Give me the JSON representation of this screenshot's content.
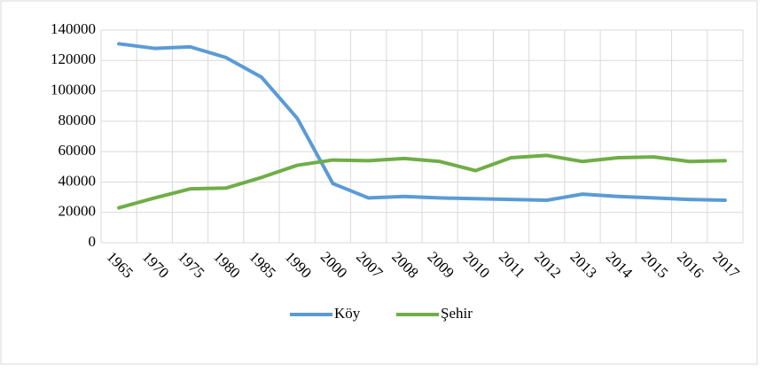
{
  "chart_data": {
    "type": "line",
    "categories": [
      "1965",
      "1970",
      "1975",
      "1980",
      "1985",
      "1990",
      "2000",
      "2007",
      "2008",
      "2009",
      "2010",
      "2011",
      "2012",
      "2013",
      "2014",
      "2015",
      "2016",
      "2017"
    ],
    "series": [
      {
        "name": "Köy",
        "color": "#5b9bd5",
        "values": [
          131000,
          128000,
          129000,
          122000,
          109000,
          82000,
          39000,
          29500,
          30500,
          29500,
          29000,
          28500,
          28000,
          32000,
          30500,
          29500,
          28500,
          28000
        ]
      },
      {
        "name": "Şehir",
        "color": "#70ad47",
        "values": [
          23000,
          29500,
          35500,
          36000,
          43000,
          51000,
          54500,
          54000,
          55500,
          53500,
          47500,
          56000,
          57500,
          53500,
          56000,
          56500,
          53500,
          54000
        ]
      }
    ],
    "ylim": [
      0,
      140000
    ],
    "yticks": [
      0,
      20000,
      40000,
      60000,
      80000,
      100000,
      120000,
      140000
    ],
    "grid": true,
    "legend": "bottom"
  }
}
